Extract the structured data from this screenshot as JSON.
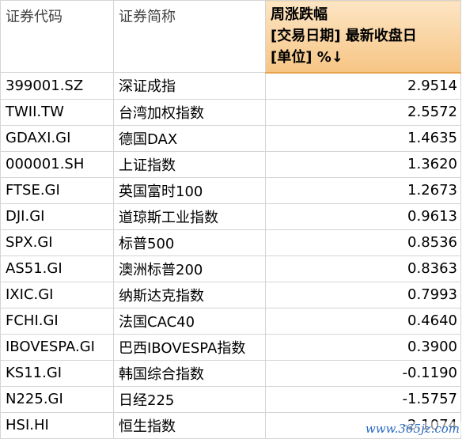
{
  "header": {
    "col_code": "证券代码",
    "col_name": "证券简称",
    "col_change_line1": "周涨跌幅",
    "col_change_line2": "[交易日期] 最新收盘日",
    "col_change_line3": "[单位] %↓"
  },
  "rows": [
    {
      "code": "399001.SZ",
      "name": "深证成指",
      "value": "2.9514"
    },
    {
      "code": "TWII.TW",
      "name": "台湾加权指数",
      "value": "2.5572"
    },
    {
      "code": "GDAXI.GI",
      "name": "德国DAX",
      "value": "1.4635"
    },
    {
      "code": "000001.SH",
      "name": "上证指数",
      "value": "1.3620"
    },
    {
      "code": "FTSE.GI",
      "name": "英国富时100",
      "value": "1.2673"
    },
    {
      "code": "DJI.GI",
      "name": "道琼斯工业指数",
      "value": "0.9613"
    },
    {
      "code": "SPX.GI",
      "name": "标普500",
      "value": "0.8536"
    },
    {
      "code": "AS51.GI",
      "name": "澳洲标普200",
      "value": "0.8363"
    },
    {
      "code": "IXIC.GI",
      "name": "纳斯达克指数",
      "value": "0.7993"
    },
    {
      "code": "FCHI.GI",
      "name": "法国CAC40",
      "value": "0.4640"
    },
    {
      "code": "IBOVESPA.GI",
      "name": "巴西IBOVESPA指数",
      "value": "0.3900"
    },
    {
      "code": "KS11.GI",
      "name": "韩国综合指数",
      "value": "-0.1190"
    },
    {
      "code": "N225.GI",
      "name": "日经225",
      "value": "-1.5757"
    },
    {
      "code": "HSI.HI",
      "name": "恒生指数",
      "value": "-2.1074"
    }
  ],
  "watermark": "www.365jz.com",
  "colors": {
    "sorted_header_top": "#fde5c4",
    "sorted_header_bottom": "#f6c584",
    "grid_line": "#d4d4d4",
    "watermark": "#2b6cc4"
  }
}
